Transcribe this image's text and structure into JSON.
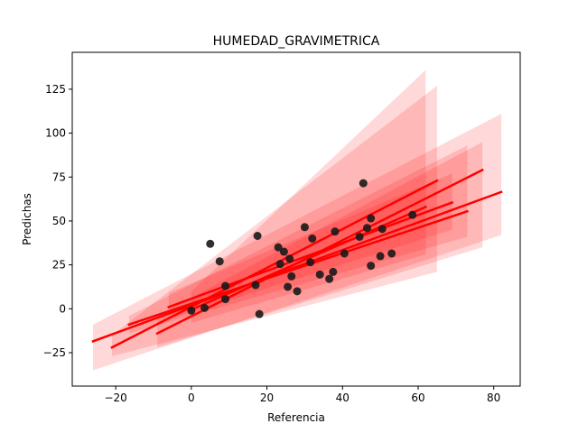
{
  "chart_data": {
    "type": "scatter",
    "title": "HUMEDAD_GRAVIMETRICA",
    "xlabel": "Referencia",
    "ylabel": "Predichas",
    "xlim": [
      -31.5,
      87
    ],
    "ylim": [
      -44,
      146
    ],
    "xticks": [
      -20,
      0,
      20,
      40,
      60,
      80
    ],
    "yticks": [
      -25,
      0,
      25,
      50,
      75,
      100,
      125
    ],
    "xtick_labels": [
      "−20",
      "0",
      "20",
      "40",
      "60",
      "80"
    ],
    "ytick_labels": [
      "−25",
      "0",
      "25",
      "50",
      "75",
      "100",
      "125"
    ],
    "grid": false,
    "colors": {
      "points": "#1a1a1a",
      "lines": "#ff0000",
      "bands": "#ff0000"
    },
    "points": [
      {
        "x": 0.0,
        "y": -1.0
      },
      {
        "x": 3.5,
        "y": 0.5
      },
      {
        "x": 5.0,
        "y": 37.0
      },
      {
        "x": 7.5,
        "y": 27.0
      },
      {
        "x": 9.0,
        "y": 13.0
      },
      {
        "x": 9.0,
        "y": 5.5
      },
      {
        "x": 17.0,
        "y": 13.5
      },
      {
        "x": 17.5,
        "y": 41.5
      },
      {
        "x": 18.0,
        "y": -3.0
      },
      {
        "x": 23.0,
        "y": 35.0
      },
      {
        "x": 23.5,
        "y": 25.5
      },
      {
        "x": 24.5,
        "y": 32.5
      },
      {
        "x": 25.5,
        "y": 12.5
      },
      {
        "x": 26.0,
        "y": 28.5
      },
      {
        "x": 26.5,
        "y": 18.5
      },
      {
        "x": 28.0,
        "y": 10.0
      },
      {
        "x": 30.0,
        "y": 46.5
      },
      {
        "x": 31.5,
        "y": 26.5
      },
      {
        "x": 32.0,
        "y": 40.0
      },
      {
        "x": 34.0,
        "y": 19.5
      },
      {
        "x": 36.5,
        "y": 17.0
      },
      {
        "x": 37.5,
        "y": 21.0
      },
      {
        "x": 38.0,
        "y": 44.0
      },
      {
        "x": 40.5,
        "y": 31.5
      },
      {
        "x": 44.5,
        "y": 41.0
      },
      {
        "x": 45.5,
        "y": 71.5
      },
      {
        "x": 46.5,
        "y": 46.0
      },
      {
        "x": 47.5,
        "y": 51.5
      },
      {
        "x": 47.5,
        "y": 24.5
      },
      {
        "x": 50.0,
        "y": 30.0
      },
      {
        "x": 50.5,
        "y": 45.5
      },
      {
        "x": 53.0,
        "y": 31.5
      },
      {
        "x": 58.5,
        "y": 53.5
      }
    ],
    "series": [
      {
        "x": [
          -26,
          82
        ],
        "y": [
          -18.5,
          66.5
        ],
        "band_lo": [
          -35,
          42
        ],
        "band_hi": [
          -9,
          111
        ]
      },
      {
        "x": [
          -21,
          65
        ],
        "y": [
          -22,
          73
        ],
        "band_lo": [
          -27,
          21
        ],
        "band_hi": [
          -15,
          127
        ]
      },
      {
        "x": [
          -16.5,
          73
        ],
        "y": [
          -9,
          55.5
        ],
        "band_lo": [
          -14,
          41
        ],
        "band_hi": [
          -4,
          93
        ]
      },
      {
        "x": [
          -9,
          77
        ],
        "y": [
          -14,
          79
        ],
        "band_lo": [
          -22,
          35
        ],
        "band_hi": [
          -4,
          95
        ]
      },
      {
        "x": [
          -6,
          69
        ],
        "y": [
          1,
          60.5
        ],
        "band_lo": [
          -6,
          45
        ],
        "band_hi": [
          9,
          77
        ]
      },
      {
        "x": [
          0,
          62
        ],
        "y": [
          -0.5,
          58
        ],
        "band_lo": [
          -8,
          31
        ],
        "band_hi": [
          10,
          136
        ]
      }
    ]
  }
}
